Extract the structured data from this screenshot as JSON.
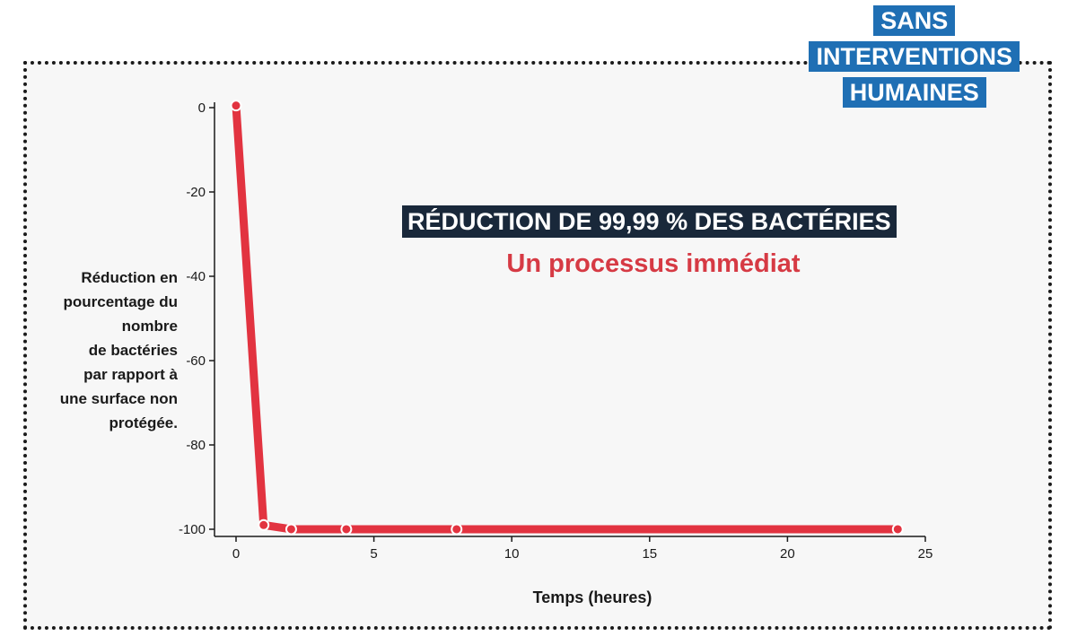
{
  "badge": {
    "lines": [
      "SANS",
      "INTERVENTIONS",
      "HUMAINES"
    ],
    "bg_color": "#1f6fb4"
  },
  "headline": "RÉDUCTION DE 99,99 % DES BACTÉRIES",
  "subheadline": "Un processus immédiat",
  "colors": {
    "line": "#e23340",
    "headline_bg": "#19283a",
    "subheadline": "#d63a44",
    "axis": "#1a1a1a"
  },
  "chart_data": {
    "type": "line",
    "title": "RÉDUCTION DE 99,99 % DES BACTÉRIES",
    "subtitle": "Un processus immédiat",
    "xlabel": "Temps (heures)",
    "ylabel": "Réduction en pourcentage du nombre de bactéries par rapport à une surface non protégée.",
    "ylabel_lines": [
      "Réduction en",
      "pourcentage du",
      "nombre",
      "de bactéries",
      "par rapport à",
      "une surface non",
      "protégée."
    ],
    "xlim": [
      0,
      25
    ],
    "ylim": [
      -100,
      0
    ],
    "x_ticks": [
      0,
      5,
      10,
      15,
      20,
      25
    ],
    "y_ticks": [
      0,
      -20,
      -40,
      -60,
      -80,
      -100
    ],
    "grid": false,
    "series": [
      {
        "x": [
          0,
          1,
          2,
          4,
          8,
          24
        ],
        "y": [
          0.5,
          -99,
          -99.99,
          -99.99,
          -99.99,
          -99.99
        ]
      }
    ]
  }
}
